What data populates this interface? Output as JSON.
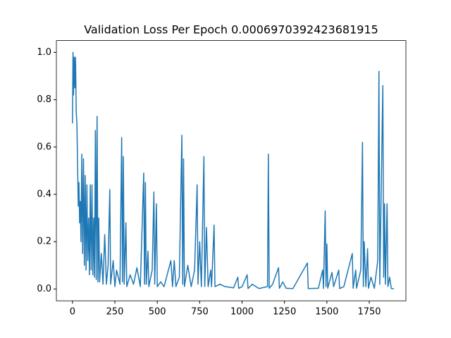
{
  "chart_data": {
    "type": "line",
    "title": "Validation Loss Per Epoch 0.0006970392423681915",
    "x": [
      0,
      3,
      6,
      10,
      14,
      18,
      22,
      26,
      30,
      34,
      38,
      42,
      46,
      50,
      55,
      60,
      65,
      70,
      75,
      80,
      85,
      90,
      95,
      100,
      105,
      110,
      115,
      120,
      125,
      130,
      135,
      140,
      145,
      150,
      155,
      160,
      170,
      180,
      190,
      200,
      210,
      220,
      225,
      240,
      250,
      260,
      280,
      290,
      295,
      300,
      305,
      315,
      320,
      340,
      360,
      380,
      400,
      420,
      425,
      430,
      435,
      445,
      450,
      470,
      480,
      485,
      495,
      500,
      520,
      540,
      580,
      590,
      600,
      610,
      630,
      645,
      650,
      655,
      660,
      680,
      700,
      720,
      735,
      740,
      750,
      760,
      775,
      780,
      790,
      800,
      815,
      820,
      835,
      840,
      870,
      900,
      950,
      975,
      980,
      1000,
      1030,
      1035,
      1060,
      1100,
      1150,
      1155,
      1160,
      1180,
      1215,
      1220,
      1240,
      1260,
      1300,
      1385,
      1390,
      1450,
      1475,
      1480,
      1490,
      1495,
      1500,
      1505,
      1530,
      1540,
      1570,
      1575,
      1600,
      1650,
      1655,
      1670,
      1675,
      1700,
      1710,
      1715,
      1720,
      1730,
      1740,
      1745,
      1760,
      1780,
      1800,
      1807,
      1812,
      1820,
      1830,
      1835,
      1840,
      1845,
      1855,
      1860,
      1870,
      1880,
      1895
    ],
    "series": [
      {
        "color": "#1f77b4",
        "values": [
          0.7,
          1.0,
          0.82,
          0.98,
          0.85,
          0.98,
          0.75,
          0.7,
          0.53,
          0.35,
          0.45,
          0.28,
          0.37,
          0.2,
          0.57,
          0.15,
          0.55,
          0.1,
          0.48,
          0.08,
          0.44,
          0.12,
          0.3,
          0.06,
          0.44,
          0.08,
          0.44,
          0.06,
          0.3,
          0.05,
          0.67,
          0.04,
          0.73,
          0.03,
          0.3,
          0.03,
          0.15,
          0.02,
          0.23,
          0.02,
          0.1,
          0.42,
          0.02,
          0.12,
          0.01,
          0.08,
          0.02,
          0.64,
          0.03,
          0.56,
          0.02,
          0.28,
          0.01,
          0.06,
          0.02,
          0.09,
          0.01,
          0.49,
          0.02,
          0.45,
          0.02,
          0.16,
          0.01,
          0.08,
          0.41,
          0.02,
          0.36,
          0.01,
          0.03,
          0.01,
          0.12,
          0.01,
          0.12,
          0.01,
          0.05,
          0.65,
          0.02,
          0.55,
          0.01,
          0.1,
          0.01,
          0.08,
          0.44,
          0.02,
          0.2,
          0.01,
          0.56,
          0.01,
          0.26,
          0.01,
          0.08,
          0.01,
          0.27,
          0.01,
          0.02,
          0.01,
          0.005,
          0.05,
          0.003,
          0.01,
          0.06,
          0.002,
          0.02,
          0.002,
          0.01,
          0.57,
          0.003,
          0.02,
          0.09,
          0.003,
          0.03,
          0.003,
          0.002,
          0.11,
          0.002,
          0.003,
          0.08,
          0.002,
          0.33,
          0.01,
          0.19,
          0.003,
          0.07,
          0.01,
          0.08,
          0.002,
          0.01,
          0.15,
          0.003,
          0.08,
          0.003,
          0.08,
          0.62,
          0.01,
          0.2,
          0.01,
          0.17,
          0.003,
          0.05,
          0.003,
          0.12,
          0.92,
          0.02,
          0.4,
          0.86,
          0.05,
          0.36,
          0.02,
          0.36,
          0.01,
          0.05,
          0.002,
          0.0006970392423681915
        ]
      }
    ],
    "xlim": [
      -95,
      1966
    ],
    "xticks": [
      0,
      250,
      500,
      750,
      1000,
      1250,
      1500,
      1750
    ],
    "ylim": [
      -0.05,
      1.05
    ],
    "yticks": [
      {
        "value": 0,
        "label": "0.0"
      },
      0.2,
      0.4,
      0.6,
      0.8,
      {
        "value": 1,
        "label": "1.0"
      }
    ]
  }
}
